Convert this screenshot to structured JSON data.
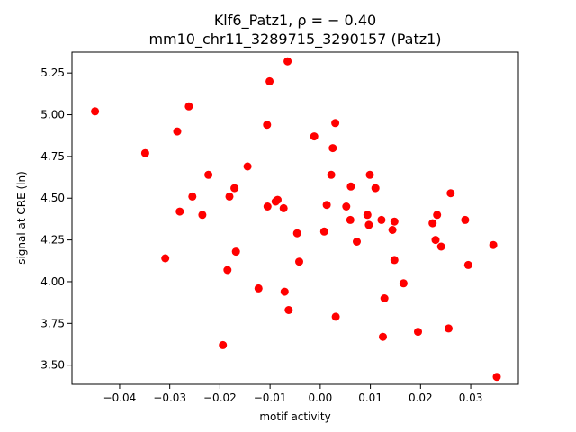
{
  "chart_data": {
    "type": "scatter",
    "title_line1": "Klf6_Patz1, ρ = − 0.40",
    "title_line2": "mm10_chr11_3289715_3290157 (Patz1)",
    "xlabel": "motif activity",
    "ylabel": "signal at CRE (ln)",
    "xlim": [
      -0.0495,
      0.0395
    ],
    "ylim": [
      3.385,
      5.375
    ],
    "xticks": [
      -0.04,
      -0.03,
      -0.02,
      -0.01,
      0.0,
      0.01,
      0.02,
      0.03
    ],
    "xtick_labels": [
      "−0.04",
      "−0.03",
      "−0.02",
      "−0.01",
      "0.00",
      "0.01",
      "0.02",
      "0.03"
    ],
    "yticks": [
      3.5,
      3.75,
      4.0,
      4.25,
      4.5,
      4.75,
      5.0,
      5.25
    ],
    "ytick_labels": [
      "3.50",
      "3.75",
      "4.00",
      "4.25",
      "4.50",
      "4.75",
      "5.00",
      "5.25"
    ],
    "grid": false,
    "color": "#ff0000",
    "points": [
      [
        -0.0449,
        5.02
      ],
      [
        -0.0349,
        4.77
      ],
      [
        -0.0309,
        4.14
      ],
      [
        -0.0285,
        4.9
      ],
      [
        -0.028,
        4.42
      ],
      [
        -0.0262,
        5.05
      ],
      [
        -0.0255,
        4.51
      ],
      [
        -0.0235,
        4.4
      ],
      [
        -0.0223,
        4.64
      ],
      [
        -0.0194,
        3.62
      ],
      [
        -0.0185,
        4.07
      ],
      [
        -0.0181,
        4.51
      ],
      [
        -0.0171,
        4.56
      ],
      [
        -0.0168,
        4.18
      ],
      [
        -0.0145,
        4.69
      ],
      [
        -0.0123,
        3.96
      ],
      [
        -0.0106,
        4.94
      ],
      [
        -0.0105,
        4.45
      ],
      [
        -0.0101,
        5.2
      ],
      [
        -0.0089,
        4.48
      ],
      [
        -0.0085,
        4.49
      ],
      [
        -0.0073,
        4.44
      ],
      [
        -0.0071,
        3.94
      ],
      [
        -0.0065,
        5.32
      ],
      [
        -0.0063,
        3.83
      ],
      [
        -0.0046,
        4.29
      ],
      [
        -0.0042,
        4.12
      ],
      [
        -0.0012,
        4.87
      ],
      [
        0.0008,
        4.3
      ],
      [
        0.0013,
        4.46
      ],
      [
        0.0022,
        4.64
      ],
      [
        0.0025,
        4.8
      ],
      [
        0.003,
        4.95
      ],
      [
        0.0031,
        3.79
      ],
      [
        0.0052,
        4.45
      ],
      [
        0.006,
        4.37
      ],
      [
        0.0061,
        4.57
      ],
      [
        0.0073,
        4.24
      ],
      [
        0.0094,
        4.4
      ],
      [
        0.0097,
        4.34
      ],
      [
        0.0099,
        4.64
      ],
      [
        0.011,
        4.56
      ],
      [
        0.0122,
        4.37
      ],
      [
        0.0125,
        3.67
      ],
      [
        0.0128,
        3.9
      ],
      [
        0.0144,
        4.31
      ],
      [
        0.0148,
        4.36
      ],
      [
        0.0148,
        4.13
      ],
      [
        0.0166,
        3.99
      ],
      [
        0.0195,
        3.7
      ],
      [
        0.0224,
        4.35
      ],
      [
        0.023,
        4.25
      ],
      [
        0.0233,
        4.4
      ],
      [
        0.0241,
        4.21
      ],
      [
        0.0256,
        3.72
      ],
      [
        0.026,
        4.53
      ],
      [
        0.0289,
        4.37
      ],
      [
        0.0295,
        4.1
      ],
      [
        0.0345,
        4.22
      ],
      [
        0.0352,
        3.43
      ]
    ]
  }
}
